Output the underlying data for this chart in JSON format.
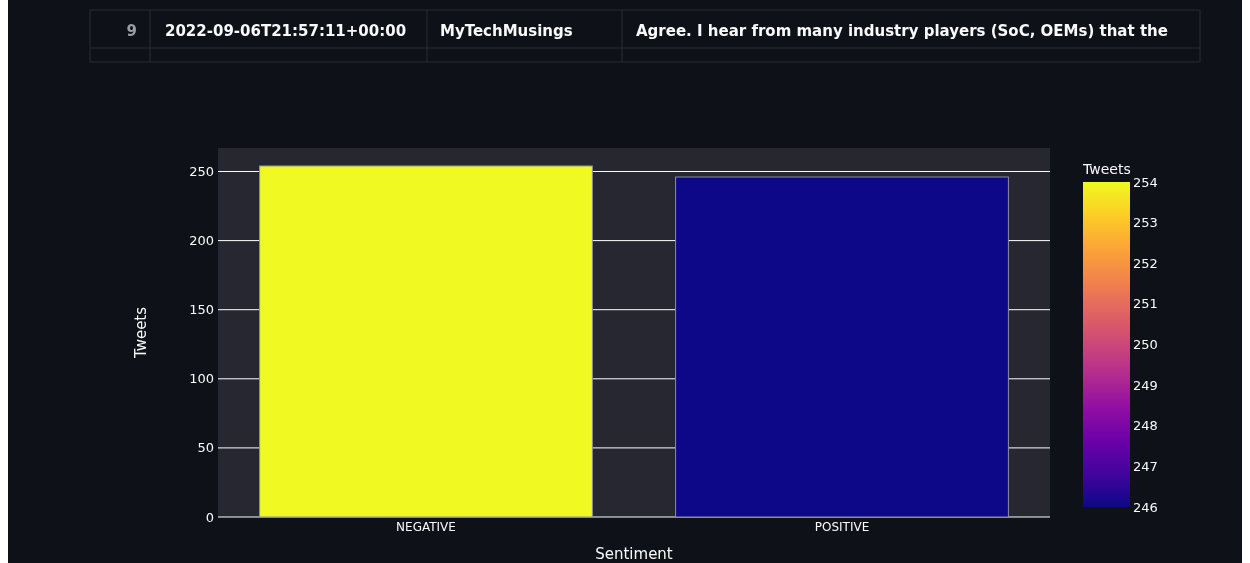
{
  "chart_data": {
    "type": "bar",
    "categories": [
      "NEGATIVE",
      "POSITIVE"
    ],
    "values": [
      254,
      246
    ],
    "colors": [
      "#f0f921",
      "#0d0887"
    ],
    "xlabel": "Sentiment",
    "ylabel": "Tweets",
    "clabel": "Tweets",
    "clim": [
      246,
      254
    ],
    "cticks": [
      246,
      247,
      248,
      249,
      250,
      251,
      252,
      253,
      254
    ],
    "ylim": [
      0,
      267
    ],
    "yticks": [
      0,
      50,
      100,
      150,
      200,
      250
    ],
    "grid": "y",
    "annotations": [
      "9",
      "2022-09-06T21:57:11+00:00",
      "MyTechMusings",
      "Agree. I hear from many industry players (SoC, OEMs) that the"
    ]
  }
}
